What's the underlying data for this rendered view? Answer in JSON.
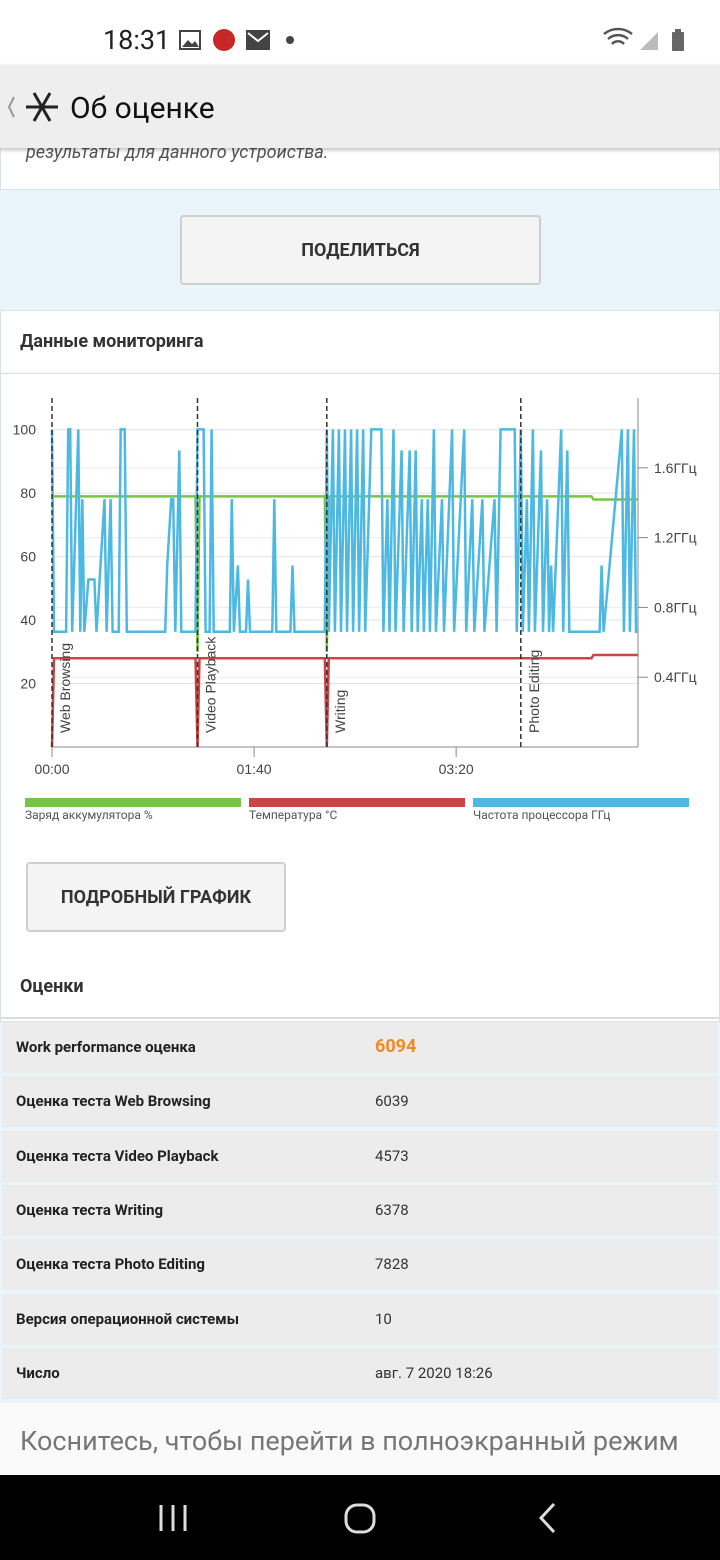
{
  "status_bar": {
    "time": "18:31"
  },
  "app_bar": {
    "title": "Об оценке"
  },
  "intro_text": "результаты для данного устройства.",
  "share_button": "ПОДЕЛИТЬСЯ",
  "monitoring": {
    "title": "Данные мониторинга",
    "chart_data": {
      "type": "line",
      "xlim": [
        0,
        290
      ],
      "xticks": [
        {
          "value": 0,
          "label": "00:00"
        },
        {
          "value": 100,
          "label": "01:40"
        },
        {
          "value": 200,
          "label": "03:20"
        }
      ],
      "ylim": [
        0,
        110
      ],
      "yticks": [
        20,
        40,
        60,
        80,
        100
      ],
      "y2lim": [
        0,
        2
      ],
      "y2ticks": [
        {
          "value": 0.4,
          "label": "0.4ГГц"
        },
        {
          "value": 0.8,
          "label": "0.8ГГц"
        },
        {
          "value": 1.2,
          "label": "1.2ГГц"
        },
        {
          "value": 1.6,
          "label": "1.6ГГц"
        }
      ],
      "grid": true,
      "markers": [
        {
          "x": 0,
          "label": "Web Browsing"
        },
        {
          "x": 72,
          "label": "Video Playback"
        },
        {
          "x": 136,
          "label": "Writing"
        },
        {
          "x": 232,
          "label": "Photo Editing"
        }
      ],
      "series": [
        {
          "name": "Заряд аккумулятора %",
          "color": "#78c445",
          "x": [
            0,
            71,
            72,
            73,
            135,
            136,
            137,
            267,
            268,
            290
          ],
          "values": [
            79,
            79,
            30,
            79,
            79,
            30,
            79,
            79,
            78,
            78
          ]
        },
        {
          "name": "Температура °C",
          "color": "#cc4444",
          "x": [
            0,
            1,
            71,
            72,
            73,
            135,
            136,
            137,
            267,
            268,
            290
          ],
          "values": [
            0,
            28,
            28,
            0,
            28,
            28,
            0,
            28,
            28,
            29,
            29
          ]
        },
        {
          "name": "Частота процессора ГГц",
          "color": "#4db8e2",
          "axis": "y2",
          "x": [
            0,
            1,
            7,
            8,
            9,
            10,
            13,
            14,
            15,
            16,
            18,
            21,
            22,
            26,
            27,
            29,
            30,
            33,
            34,
            36,
            37,
            56,
            57,
            59,
            60,
            61,
            63,
            64,
            71,
            72,
            75,
            76,
            78,
            79,
            80,
            88,
            89,
            90,
            92,
            93,
            96,
            97,
            98,
            109,
            110,
            111,
            118,
            119,
            120,
            135,
            136,
            137,
            139,
            140,
            142,
            143,
            145,
            146,
            148,
            149,
            151,
            152,
            154,
            155,
            158,
            163,
            164,
            166,
            167,
            169,
            170,
            173,
            174,
            177,
            178,
            180,
            181,
            183,
            184,
            186,
            187,
            189,
            190,
            193,
            194,
            198,
            199,
            204,
            205,
            208,
            209,
            213,
            214,
            219,
            220,
            222,
            229,
            230,
            232,
            233,
            235,
            236,
            238,
            239,
            242,
            243,
            245,
            246,
            247,
            248,
            252,
            253,
            255,
            256,
            271,
            272,
            273,
            282,
            283,
            285,
            286,
            288,
            289,
            290
          ],
          "values": [
            1.82,
            0.66,
            0.66,
            1.82,
            1.82,
            0.66,
            1.82,
            0.66,
            1.42,
            0.66,
            0.96,
            0.96,
            0.66,
            1.42,
            0.66,
            1.42,
            0.66,
            0.66,
            1.82,
            1.82,
            0.66,
            0.66,
            1.04,
            1.42,
            1.42,
            0.66,
            1.7,
            0.66,
            0.66,
            1.82,
            1.82,
            0.66,
            0.66,
            1.82,
            0.66,
            0.66,
            1.42,
            0.66,
            1.04,
            0.66,
            0.66,
            0.96,
            0.66,
            0.66,
            1.42,
            0.66,
            0.66,
            1.04,
            0.66,
            0.66,
            1.82,
            0.66,
            1.82,
            0.66,
            1.82,
            0.66,
            1.82,
            0.66,
            1.82,
            0.66,
            1.82,
            0.66,
            1.82,
            0.66,
            1.82,
            1.82,
            0.66,
            1.42,
            0.66,
            1.82,
            0.66,
            1.7,
            0.66,
            1.7,
            0.66,
            1.7,
            0.66,
            1.42,
            0.66,
            1.42,
            0.66,
            1.82,
            0.66,
            1.42,
            0.66,
            1.82,
            0.66,
            1.82,
            0.66,
            1.42,
            0.66,
            1.42,
            0.66,
            1.42,
            0.66,
            1.82,
            1.82,
            0.66,
            1.82,
            0.66,
            1.42,
            0.66,
            1.82,
            0.66,
            1.7,
            0.66,
            1.42,
            0.66,
            1.04,
            0.66,
            1.82,
            0.66,
            1.7,
            0.66,
            0.66,
            1.04,
            0.66,
            1.82,
            0.66,
            1.82,
            0.66,
            1.82,
            0.66,
            0.66
          ]
        }
      ]
    }
  },
  "detail_button": "ПОДРОБНЫЙ ГРАФИК",
  "scores": {
    "title": "Оценки",
    "rows": [
      [
        "Work performance оценка",
        "6094"
      ],
      [
        "Оценка теста Web Browsing",
        "6039"
      ],
      [
        "Оценка теста Video Playback",
        "4573"
      ],
      [
        "Оценка теста Writing",
        "6378"
      ],
      [
        "Оценка теста Photo Editing",
        "7828"
      ],
      [
        "Версия операционной системы",
        "10"
      ],
      [
        "Число",
        "авг. 7 2020 18:26"
      ]
    ]
  },
  "fullscreen_hint": "Коснитесь, чтобы перейти в полноэкранный режим"
}
